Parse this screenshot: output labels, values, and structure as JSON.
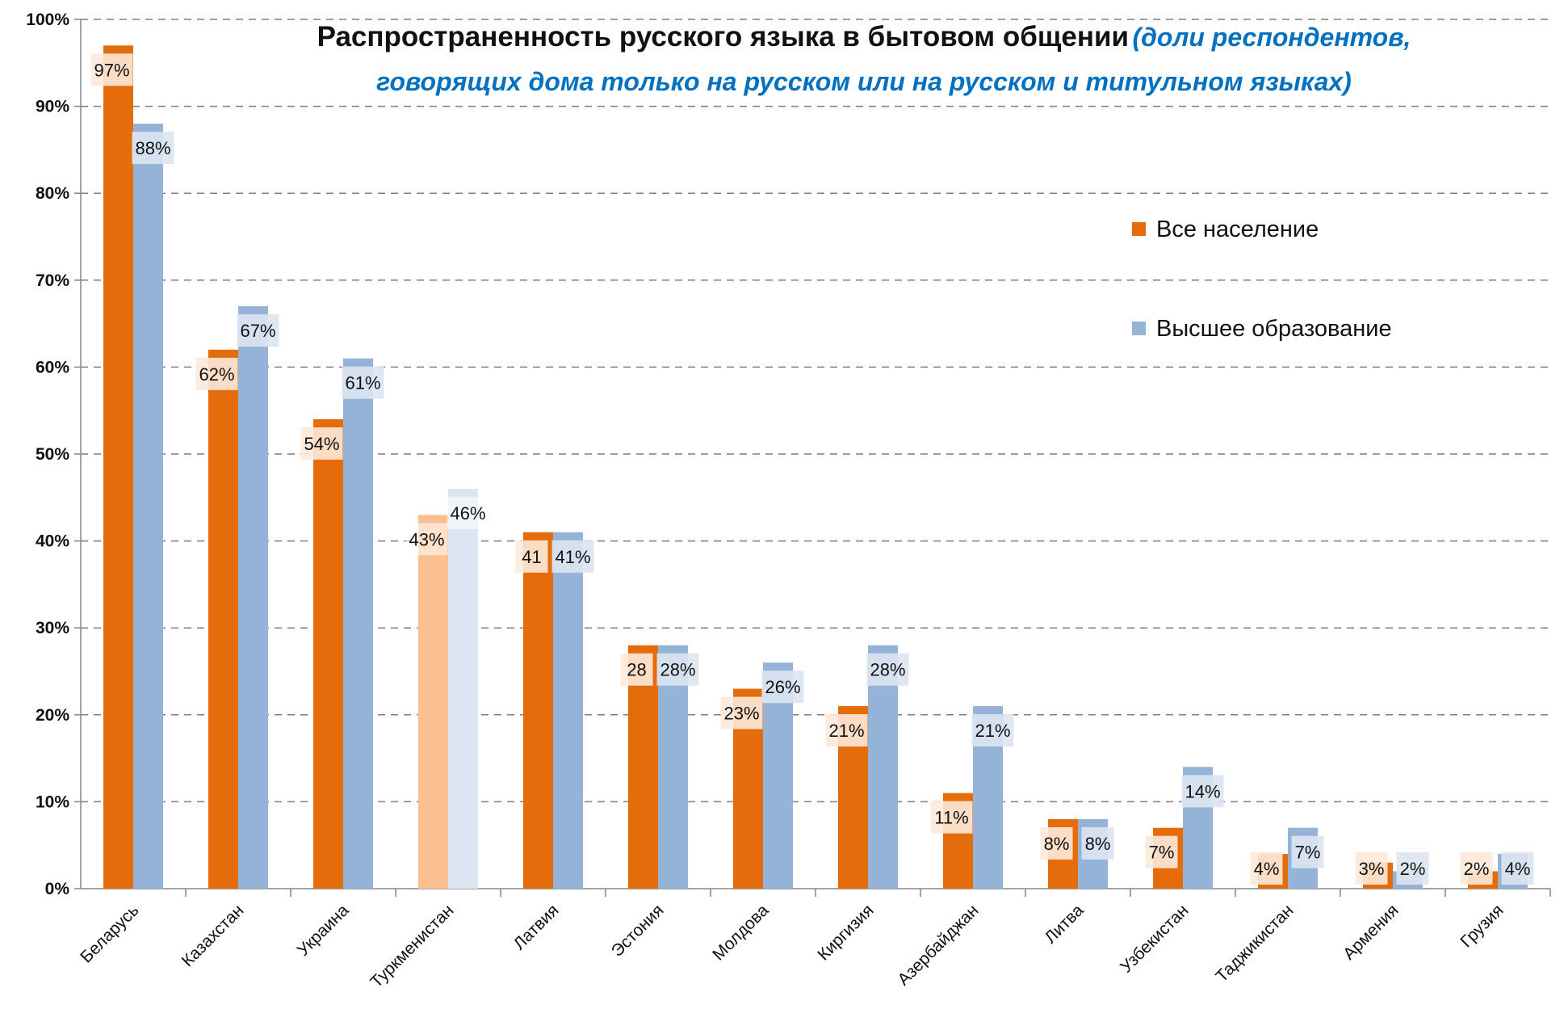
{
  "chart_data": {
    "type": "bar",
    "title": "Распространенность русского языка в бытовом общении",
    "subtitle": "(доли респондентов, говорящих дома только на русском или на русском и титульном языках)",
    "xlabel": "",
    "ylabel": "",
    "ylim": [
      0,
      100
    ],
    "y_ticks": [
      "0%",
      "10%",
      "20%",
      "30%",
      "40%",
      "50%",
      "60%",
      "70%",
      "80%",
      "90%",
      "100%"
    ],
    "grid": true,
    "legend_position": "right",
    "categories": [
      "Беларусь",
      "Казахстан",
      "Украина",
      "Туркменистан",
      "Латвия",
      "Эстония",
      "Молдова",
      "Киргизия",
      "Азербайджан",
      "Литва",
      "Узбекистан",
      "Таджикистан",
      "Армения",
      "Грузия"
    ],
    "series": [
      {
        "name": "Все население",
        "color": "#e46c0a",
        "values": [
          97,
          62,
          54,
          43,
          41,
          28,
          23,
          21,
          11,
          8,
          7,
          4,
          3,
          2
        ],
        "labels": [
          "97%",
          "62%",
          "54%",
          "43%",
          "41",
          "28",
          "23%",
          "21%",
          "11%",
          "8%",
          "7%",
          "4%",
          "3%",
          "2%"
        ]
      },
      {
        "name": "Высшее образование",
        "color": "#95b3d7",
        "values": [
          88,
          67,
          61,
          46,
          41,
          28,
          26,
          28,
          21,
          8,
          14,
          7,
          2,
          4
        ],
        "labels": [
          "88%",
          "67%",
          "61%",
          "46%",
          "41%",
          "28%",
          "26%",
          "28%",
          "21%",
          "8%",
          "14%",
          "7%",
          "2%",
          "4%"
        ]
      }
    ],
    "highlighted_category": "Туркменистан",
    "highlight_colors": {
      "Все население": "#fac090",
      "Высшее образование": "#dce6f2"
    },
    "label_box_colors": {
      "Все население": "#fde9d9",
      "Высшее образование": "#dbe5f1"
    }
  }
}
